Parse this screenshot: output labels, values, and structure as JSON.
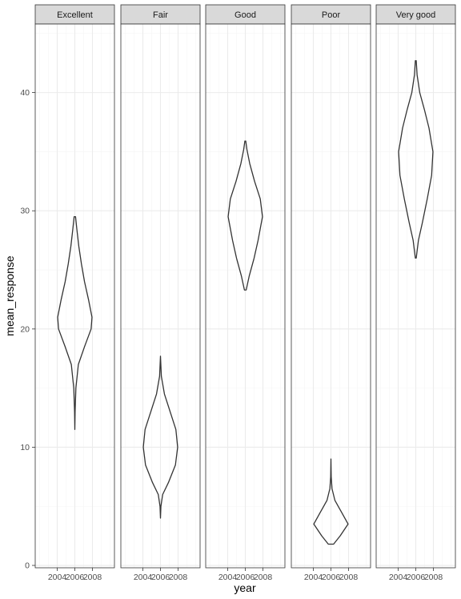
{
  "chart_data": {
    "type": "violin",
    "xlabel": "year",
    "ylabel": "mean_response",
    "x_ticks": [
      "2004",
      "2006",
      "2008"
    ],
    "x_range": [
      2001.5,
      2010.5
    ],
    "y_ticks": [
      "0",
      "10",
      "20",
      "30",
      "40"
    ],
    "y_range": [
      -0.2,
      45.8
    ],
    "grid": true,
    "theme": "bw",
    "colors": {
      "strip_fill": "#d9d9d9",
      "panel_border": "#333333",
      "grid_major": "#ebebeb",
      "grid_minor": "#f5f5f5",
      "violin_stroke": "#333333"
    },
    "panels": [
      {
        "name": "Excellent",
        "x": 2006,
        "profile": [
          {
            "y": 11.5,
            "w": 0.0
          },
          {
            "y": 13.0,
            "w": 0.03
          },
          {
            "y": 15.0,
            "w": 0.12
          },
          {
            "y": 17.0,
            "w": 0.4
          },
          {
            "y": 18.5,
            "w": 1.1
          },
          {
            "y": 20.0,
            "w": 1.85
          },
          {
            "y": 21.0,
            "w": 1.95
          },
          {
            "y": 22.5,
            "w": 1.55
          },
          {
            "y": 24.0,
            "w": 1.1
          },
          {
            "y": 25.5,
            "w": 0.75
          },
          {
            "y": 27.0,
            "w": 0.45
          },
          {
            "y": 28.5,
            "w": 0.22
          },
          {
            "y": 29.5,
            "w": 0.08
          }
        ]
      },
      {
        "name": "Fair",
        "x": 2006,
        "profile": [
          {
            "y": 4.0,
            "w": 0.0
          },
          {
            "y": 5.0,
            "w": 0.05
          },
          {
            "y": 6.0,
            "w": 0.25
          },
          {
            "y": 7.0,
            "w": 0.9
          },
          {
            "y": 8.5,
            "w": 1.7
          },
          {
            "y": 10.0,
            "w": 1.95
          },
          {
            "y": 11.5,
            "w": 1.75
          },
          {
            "y": 13.0,
            "w": 1.1
          },
          {
            "y": 14.5,
            "w": 0.45
          },
          {
            "y": 16.0,
            "w": 0.1
          },
          {
            "y": 17.7,
            "w": 0.0
          }
        ]
      },
      {
        "name": "Good",
        "x": 2006,
        "profile": [
          {
            "y": 23.3,
            "w": 0.1
          },
          {
            "y": 24.5,
            "w": 0.45
          },
          {
            "y": 26.0,
            "w": 1.0
          },
          {
            "y": 27.5,
            "w": 1.45
          },
          {
            "y": 29.5,
            "w": 1.95
          },
          {
            "y": 31.0,
            "w": 1.7
          },
          {
            "y": 32.5,
            "w": 1.05
          },
          {
            "y": 34.0,
            "w": 0.5
          },
          {
            "y": 35.2,
            "w": 0.18
          },
          {
            "y": 35.9,
            "w": 0.05
          }
        ]
      },
      {
        "name": "Poor",
        "x": 2006,
        "profile": [
          {
            "y": 1.8,
            "w": 0.3
          },
          {
            "y": 2.5,
            "w": 1.05
          },
          {
            "y": 3.5,
            "w": 1.95
          },
          {
            "y": 4.5,
            "w": 1.2
          },
          {
            "y": 5.5,
            "w": 0.45
          },
          {
            "y": 6.5,
            "w": 0.12
          },
          {
            "y": 7.5,
            "w": 0.03
          },
          {
            "y": 9.0,
            "w": 0.0
          }
        ]
      },
      {
        "name": "Very good",
        "x": 2006,
        "profile": [
          {
            "y": 26.0,
            "w": 0.05
          },
          {
            "y": 27.5,
            "w": 0.3
          },
          {
            "y": 29.0,
            "w": 0.75
          },
          {
            "y": 31.0,
            "w": 1.3
          },
          {
            "y": 33.0,
            "w": 1.8
          },
          {
            "y": 35.0,
            "w": 1.95
          },
          {
            "y": 37.0,
            "w": 1.5
          },
          {
            "y": 38.5,
            "w": 1.0
          },
          {
            "y": 40.0,
            "w": 0.45
          },
          {
            "y": 41.5,
            "w": 0.15
          },
          {
            "y": 42.7,
            "w": 0.05
          }
        ]
      }
    ]
  }
}
